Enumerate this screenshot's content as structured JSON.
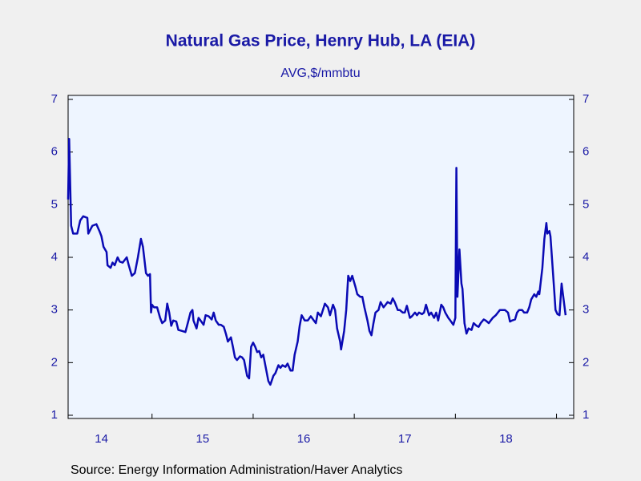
{
  "chart_data": {
    "type": "line",
    "title": "Natural Gas Price, Henry Hub, LA (EIA)",
    "subtitle": "AVG,$/mmbtu",
    "source": "Source:  Energy Information Administration/Haver Analytics",
    "xlim": [
      2014.17,
      2019.17
    ],
    "xticks": [
      {
        "value": 2014.5,
        "label": "14"
      },
      {
        "value": 2015.5,
        "label": "15"
      },
      {
        "value": 2016.5,
        "label": "16"
      },
      {
        "value": 2017.5,
        "label": "17"
      },
      {
        "value": 2018.5,
        "label": "18"
      }
    ],
    "ylim": [
      1,
      7
    ],
    "yticks": [
      1,
      2,
      3,
      4,
      5,
      6,
      7
    ],
    "y2lim": [
      1,
      7
    ],
    "y2ticks": [
      1,
      2,
      3,
      4,
      5,
      6,
      7
    ],
    "x": [
      2014.17,
      2014.18,
      2014.2,
      2014.22,
      2014.26,
      2014.29,
      2014.32,
      2014.36,
      2014.37,
      2014.41,
      2014.45,
      2014.48,
      2014.5,
      2014.52,
      2014.55,
      2014.56,
      2014.59,
      2014.61,
      2014.63,
      2014.66,
      2014.68,
      2014.71,
      2014.75,
      2014.77,
      2014.8,
      2014.83,
      2014.86,
      2014.89,
      2014.91,
      2014.94,
      2014.96,
      2014.98,
      2014.99,
      2015.0,
      2015.02,
      2015.05,
      2015.08,
      2015.1,
      2015.13,
      2015.15,
      2015.17,
      2015.19,
      2015.21,
      2015.24,
      2015.26,
      2015.3,
      2015.33,
      2015.36,
      2015.38,
      2015.4,
      2015.41,
      2015.44,
      2015.46,
      2015.48,
      2015.51,
      2015.53,
      2015.56,
      2015.59,
      2015.61,
      2015.63,
      2015.66,
      2015.68,
      2015.71,
      2015.73,
      2015.75,
      2015.78,
      2015.8,
      2015.82,
      2015.84,
      2015.87,
      2015.89,
      2015.91,
      2015.94,
      2015.96,
      2015.98,
      2016.0,
      2016.02,
      2016.04,
      2016.06,
      2016.08,
      2016.1,
      2016.13,
      2016.15,
      2016.17,
      2016.2,
      2016.22,
      2016.25,
      2016.27,
      2016.29,
      2016.32,
      2016.34,
      2016.37,
      2016.39,
      2016.41,
      2016.44,
      2016.46,
      2016.48,
      2016.51,
      2016.54,
      2016.57,
      2016.6,
      2016.62,
      2016.64,
      2016.67,
      2016.69,
      2016.71,
      2016.74,
      2016.76,
      2016.79,
      2016.81,
      2016.83,
      2016.86,
      2016.87,
      2016.9,
      2016.92,
      2016.94,
      2016.96,
      2016.98,
      2017.01,
      2017.03,
      2017.06,
      2017.08,
      2017.1,
      2017.13,
      2017.15,
      2017.17,
      2017.19,
      2017.21,
      2017.24,
      2017.26,
      2017.29,
      2017.31,
      2017.33,
      2017.36,
      2017.38,
      2017.4,
      2017.43,
      2017.45,
      2017.48,
      2017.5,
      2017.52,
      2017.55,
      2017.57,
      2017.6,
      2017.62,
      2017.64,
      2017.67,
      2017.69,
      2017.71,
      2017.74,
      2017.76,
      2017.79,
      2017.81,
      2017.83,
      2017.86,
      2017.88,
      2017.9,
      2017.93,
      2017.95,
      2017.98,
      2018.0,
      2018.01,
      2018.02,
      2018.04,
      2018.06,
      2018.07,
      2018.09,
      2018.11,
      2018.13,
      2018.16,
      2018.18,
      2018.21,
      2018.23,
      2018.25,
      2018.28,
      2018.3,
      2018.33,
      2018.35,
      2018.37,
      2018.4,
      2018.42,
      2018.44,
      2018.47,
      2018.49,
      2018.52,
      2018.54,
      2018.56,
      2018.59,
      2018.61,
      2018.63,
      2018.66,
      2018.68,
      2018.71,
      2018.73,
      2018.75,
      2018.78,
      2018.8,
      2018.82,
      2018.83,
      2018.86,
      2018.88,
      2018.9,
      2018.91,
      2018.93,
      2018.94,
      2018.96,
      2018.98,
      2018.99,
      2019.01,
      2019.03,
      2019.05,
      2019.07,
      2019.09
    ],
    "series": [
      {
        "name": "Natural Gas Price",
        "color": "#0a0ab4",
        "values": [
          5.1,
          6.25,
          4.6,
          4.45,
          4.45,
          4.7,
          4.78,
          4.75,
          4.45,
          4.6,
          4.63,
          4.5,
          4.4,
          4.2,
          4.1,
          3.85,
          3.8,
          3.9,
          3.85,
          4.0,
          3.92,
          3.9,
          4.0,
          3.85,
          3.65,
          3.7,
          4.0,
          4.35,
          4.2,
          3.7,
          3.65,
          3.68,
          2.95,
          3.1,
          3.05,
          3.05,
          2.85,
          2.75,
          2.8,
          3.12,
          2.95,
          2.7,
          2.8,
          2.78,
          2.62,
          2.6,
          2.58,
          2.8,
          2.95,
          3.0,
          2.8,
          2.65,
          2.85,
          2.8,
          2.72,
          2.9,
          2.88,
          2.82,
          2.95,
          2.8,
          2.72,
          2.72,
          2.68,
          2.55,
          2.4,
          2.48,
          2.3,
          2.1,
          2.05,
          2.12,
          2.1,
          2.05,
          1.75,
          1.7,
          2.3,
          2.38,
          2.3,
          2.2,
          2.22,
          2.1,
          2.15,
          1.85,
          1.65,
          1.58,
          1.75,
          1.8,
          1.95,
          1.9,
          1.95,
          1.92,
          1.98,
          1.85,
          1.85,
          2.15,
          2.4,
          2.7,
          2.9,
          2.8,
          2.8,
          2.88,
          2.8,
          2.75,
          2.95,
          2.88,
          3.0,
          3.12,
          3.05,
          2.9,
          3.1,
          3.0,
          2.65,
          2.4,
          2.25,
          2.6,
          3.0,
          3.65,
          3.55,
          3.65,
          3.45,
          3.3,
          3.25,
          3.25,
          3.05,
          2.8,
          2.6,
          2.52,
          2.75,
          2.95,
          3.0,
          3.15,
          3.05,
          3.1,
          3.15,
          3.12,
          3.22,
          3.15,
          3.0,
          3.0,
          2.95,
          2.95,
          3.08,
          2.85,
          2.88,
          2.95,
          2.9,
          2.95,
          2.92,
          2.95,
          3.1,
          2.9,
          2.95,
          2.85,
          2.95,
          2.8,
          3.1,
          3.05,
          2.95,
          2.85,
          2.8,
          2.72,
          2.85,
          5.7,
          3.25,
          4.15,
          3.5,
          3.4,
          2.75,
          2.55,
          2.65,
          2.62,
          2.75,
          2.7,
          2.68,
          2.75,
          2.82,
          2.8,
          2.75,
          2.8,
          2.85,
          2.9,
          2.95,
          3.0,
          3.0,
          3.0,
          2.95,
          2.78,
          2.8,
          2.82,
          2.95,
          3.0,
          3.0,
          2.95,
          2.95,
          3.05,
          3.2,
          3.3,
          3.25,
          3.35,
          3.3,
          3.8,
          4.35,
          4.65,
          4.45,
          4.5,
          4.4,
          3.85,
          3.3,
          3.0,
          2.92,
          2.9,
          3.5,
          3.2,
          2.9
        ]
      }
    ]
  }
}
